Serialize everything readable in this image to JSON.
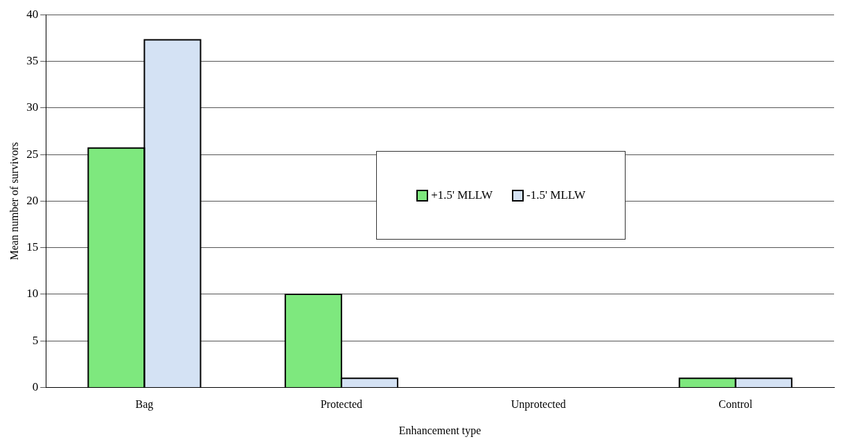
{
  "chart_data": {
    "type": "bar",
    "xlabel": "Enhancement type",
    "ylabel": "Mean number of survivors",
    "categories": [
      "Bag",
      "Protected",
      "Unprotected",
      "Control"
    ],
    "series": [
      {
        "name": "+1.5' MLLW",
        "color": "#7ee87e",
        "values": [
          25.7,
          10,
          0,
          1
        ]
      },
      {
        "name": "-1.5' MLLW",
        "color": "#d4e2f4",
        "values": [
          37.3,
          1,
          0,
          1
        ]
      }
    ],
    "ylim": [
      0,
      40
    ],
    "yticks": [
      0,
      5,
      10,
      15,
      20,
      25,
      30,
      35,
      40
    ],
    "grid": "y",
    "legend": "center"
  }
}
